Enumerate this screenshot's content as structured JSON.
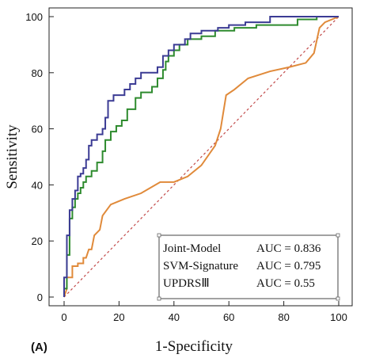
{
  "chart_data": {
    "type": "line",
    "panel_label": "(A)",
    "xlabel": "1-Specificity",
    "ylabel": "Sensitivity",
    "xlim": [
      0,
      100
    ],
    "ylim": [
      0,
      100
    ],
    "xticks": [
      0,
      20,
      40,
      60,
      80,
      100
    ],
    "yticks": [
      0,
      20,
      40,
      60,
      80,
      100
    ],
    "grid": false,
    "legend_position": "bottom-right",
    "series": [
      {
        "name": "Joint-Model",
        "auc_label": "AUC = 0.836",
        "color": "#3b3b94",
        "points": [
          [
            0,
            0
          ],
          [
            0,
            7
          ],
          [
            1,
            7
          ],
          [
            1,
            22
          ],
          [
            2,
            22
          ],
          [
            2,
            31
          ],
          [
            3,
            31
          ],
          [
            3,
            35
          ],
          [
            4,
            35
          ],
          [
            4,
            38
          ],
          [
            5,
            38
          ],
          [
            5,
            43
          ],
          [
            6,
            43
          ],
          [
            6,
            44
          ],
          [
            7,
            44
          ],
          [
            7,
            46
          ],
          [
            8,
            46
          ],
          [
            8,
            49
          ],
          [
            9,
            49
          ],
          [
            9,
            54
          ],
          [
            10,
            54
          ],
          [
            10,
            56
          ],
          [
            12,
            56
          ],
          [
            12,
            58
          ],
          [
            14,
            58
          ],
          [
            14,
            60
          ],
          [
            15,
            60
          ],
          [
            15,
            64
          ],
          [
            16,
            64
          ],
          [
            16,
            70
          ],
          [
            18,
            70
          ],
          [
            18,
            72
          ],
          [
            22,
            72
          ],
          [
            22,
            74
          ],
          [
            24,
            74
          ],
          [
            24,
            76
          ],
          [
            26,
            76
          ],
          [
            26,
            78
          ],
          [
            28,
            78
          ],
          [
            28,
            80
          ],
          [
            34,
            80
          ],
          [
            34,
            82
          ],
          [
            36,
            82
          ],
          [
            36,
            86
          ],
          [
            38,
            86
          ],
          [
            38,
            88
          ],
          [
            40,
            88
          ],
          [
            40,
            90
          ],
          [
            44,
            90
          ],
          [
            44,
            92
          ],
          [
            46,
            92
          ],
          [
            46,
            94
          ],
          [
            50,
            94
          ],
          [
            50,
            95
          ],
          [
            56,
            95
          ],
          [
            56,
            96
          ],
          [
            60,
            96
          ],
          [
            60,
            97
          ],
          [
            66,
            97
          ],
          [
            66,
            98
          ],
          [
            75,
            98
          ],
          [
            75,
            100
          ],
          [
            100,
            100
          ]
        ]
      },
      {
        "name": "SVM-Signature",
        "auc_label": "AUC = 0.795",
        "color": "#2e8b2e",
        "points": [
          [
            0,
            0
          ],
          [
            0,
            3
          ],
          [
            1,
            3
          ],
          [
            1,
            15
          ],
          [
            2,
            15
          ],
          [
            2,
            28
          ],
          [
            3,
            28
          ],
          [
            3,
            32
          ],
          [
            4,
            32
          ],
          [
            4,
            35
          ],
          [
            5,
            35
          ],
          [
            5,
            37
          ],
          [
            6,
            37
          ],
          [
            6,
            39
          ],
          [
            7,
            39
          ],
          [
            7,
            41
          ],
          [
            8,
            41
          ],
          [
            8,
            43
          ],
          [
            10,
            43
          ],
          [
            10,
            45
          ],
          [
            12,
            45
          ],
          [
            12,
            48
          ],
          [
            14,
            48
          ],
          [
            14,
            52
          ],
          [
            15,
            52
          ],
          [
            15,
            56
          ],
          [
            17,
            56
          ],
          [
            17,
            59
          ],
          [
            19,
            59
          ],
          [
            19,
            61
          ],
          [
            21,
            61
          ],
          [
            21,
            63
          ],
          [
            23,
            63
          ],
          [
            23,
            67
          ],
          [
            26,
            67
          ],
          [
            26,
            71
          ],
          [
            28,
            71
          ],
          [
            28,
            73
          ],
          [
            32,
            73
          ],
          [
            32,
            75
          ],
          [
            34,
            75
          ],
          [
            34,
            78
          ],
          [
            36,
            78
          ],
          [
            36,
            81
          ],
          [
            37,
            81
          ],
          [
            37,
            84
          ],
          [
            38,
            84
          ],
          [
            38,
            86
          ],
          [
            40,
            86
          ],
          [
            40,
            88
          ],
          [
            42,
            88
          ],
          [
            42,
            90
          ],
          [
            45,
            90
          ],
          [
            45,
            92
          ],
          [
            50,
            92
          ],
          [
            50,
            93
          ],
          [
            55,
            93
          ],
          [
            55,
            95
          ],
          [
            62,
            95
          ],
          [
            62,
            96
          ],
          [
            70,
            96
          ],
          [
            70,
            97
          ],
          [
            85,
            97
          ],
          [
            85,
            99
          ],
          [
            92,
            99
          ],
          [
            92,
            100
          ],
          [
            100,
            100
          ]
        ]
      },
      {
        "name": "UPDRSⅢ",
        "auc_label": "AUC = 0.55",
        "color": "#e08a3a",
        "points": [
          [
            0,
            0
          ],
          [
            1,
            3
          ],
          [
            1,
            7
          ],
          [
            3,
            7
          ],
          [
            3,
            11
          ],
          [
            5,
            11
          ],
          [
            5,
            12
          ],
          [
            7,
            12
          ],
          [
            7,
            14
          ],
          [
            8,
            14
          ],
          [
            9,
            17
          ],
          [
            10,
            17
          ],
          [
            11,
            22
          ],
          [
            13,
            24
          ],
          [
            14,
            29
          ],
          [
            17,
            33
          ],
          [
            22,
            35
          ],
          [
            28,
            37
          ],
          [
            35,
            41
          ],
          [
            40,
            41
          ],
          [
            45,
            43
          ],
          [
            50,
            47
          ],
          [
            55,
            54
          ],
          [
            57,
            60
          ],
          [
            59,
            72
          ],
          [
            62,
            74
          ],
          [
            67,
            78
          ],
          [
            75,
            80.5
          ],
          [
            82,
            82
          ],
          [
            88,
            83.5
          ],
          [
            91,
            87
          ],
          [
            93,
            96
          ],
          [
            95,
            98
          ],
          [
            100,
            100
          ]
        ]
      }
    ],
    "reference_line": {
      "points": [
        [
          0,
          0
        ],
        [
          100,
          100
        ]
      ],
      "color": "#c24a4a",
      "style": "dashed"
    }
  }
}
